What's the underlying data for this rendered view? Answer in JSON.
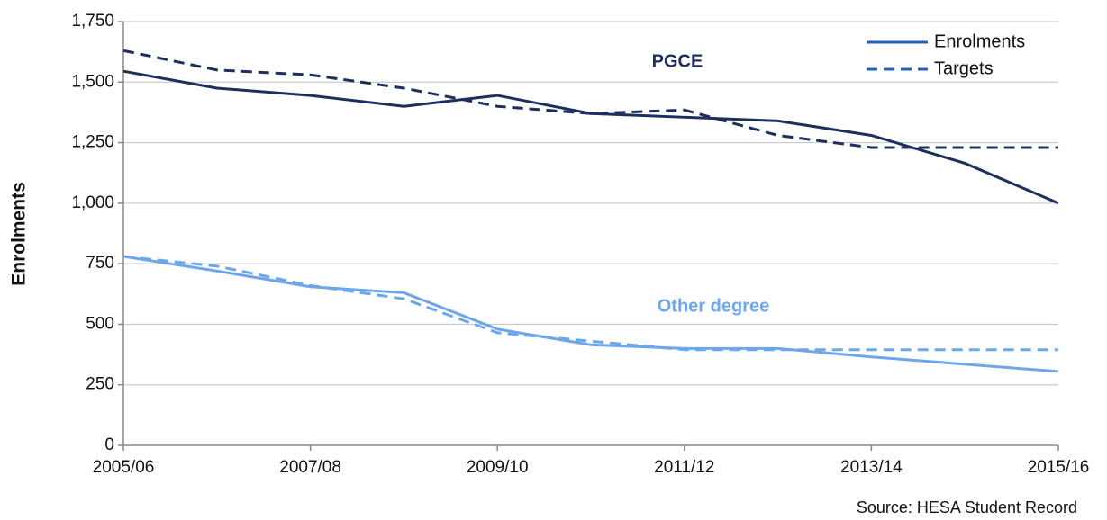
{
  "chart_data": {
    "type": "line",
    "y_label": "Enrolments",
    "source": "Source: HESA Student Record",
    "categories": [
      "2005/06",
      null,
      "2007/08",
      null,
      "2009/10",
      null,
      "2011/12",
      null,
      "2013/14",
      null,
      "2015/16"
    ],
    "ylim": [
      0,
      1750
    ],
    "yticks": [
      0,
      250,
      500,
      750,
      {
        "value": 1000,
        "label": "1,000"
      },
      {
        "value": 1250,
        "label": "1,250"
      },
      {
        "value": 1500,
        "label": "1,500"
      },
      {
        "value": 1750,
        "label": "1,750"
      }
    ],
    "grid": true,
    "groups": [
      {
        "label": "PGCE",
        "color": "#1c2f5e"
      },
      {
        "label": "Other degree",
        "color": "#6ea6ec"
      }
    ],
    "legend": [
      {
        "name": "Enrolments",
        "style": "solid"
      },
      {
        "name": "Targets",
        "style": "dashed"
      }
    ],
    "legend_color": "#2560b8",
    "legend_position": "top-right",
    "series": [
      {
        "group": 0,
        "style": "solid",
        "values": [
          1545,
          1475,
          1445,
          1400,
          1445,
          1370,
          1355,
          1340,
          1280,
          1165,
          1000
        ]
      },
      {
        "group": 0,
        "style": "dashed",
        "values": [
          1630,
          1550,
          1530,
          1475,
          1400,
          1370,
          1385,
          1280,
          1230,
          1230,
          1230
        ]
      },
      {
        "group": 1,
        "style": "solid",
        "values": [
          780,
          720,
          655,
          630,
          480,
          415,
          400,
          400,
          365,
          335,
          305
        ]
      },
      {
        "group": 1,
        "style": "dashed",
        "values": [
          780,
          740,
          660,
          605,
          465,
          430,
          395,
          395,
          395,
          395,
          395
        ]
      }
    ]
  }
}
